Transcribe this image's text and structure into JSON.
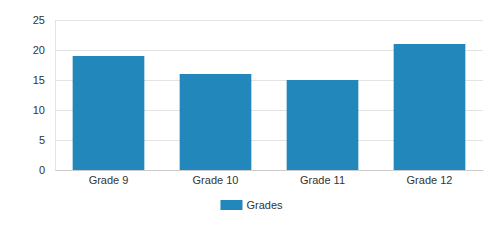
{
  "chart_data": {
    "type": "bar",
    "categories": [
      "Grade 9",
      "Grade 10",
      "Grade 11",
      "Grade 12"
    ],
    "series": [
      {
        "name": "Grades",
        "color": "#2288bb",
        "values": [
          19,
          16,
          15,
          21
        ]
      }
    ],
    "ylim": [
      0,
      25
    ],
    "yticks": [
      0,
      5,
      10,
      15,
      20,
      25
    ],
    "grid": true,
    "legend": "bottom"
  }
}
